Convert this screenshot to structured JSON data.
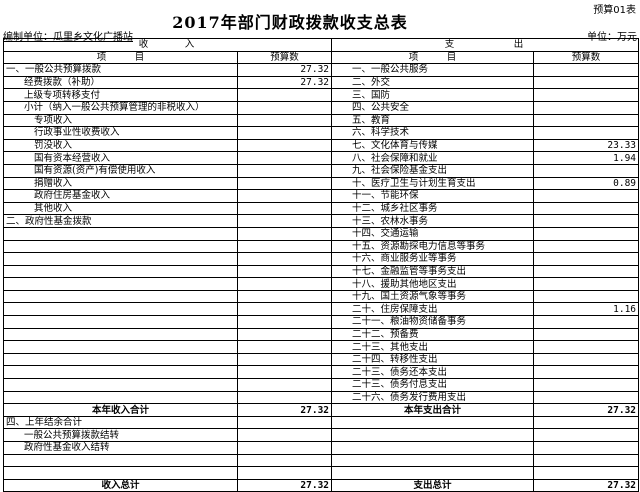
{
  "form_no": "预算01表",
  "title": "2017年部门财政拨款收支总表",
  "unit_left": "编制单位：瓜里乡文化广播站",
  "unit_right": "单位：万元",
  "headers": {
    "income": "收　　　入",
    "expense": "支　　　　　出",
    "item": "项　　　目",
    "budget": "预算数"
  },
  "income_rows": [
    {
      "label": "一、一般公共预算拨款",
      "value": "27.32",
      "level": 0
    },
    {
      "label": "经费拨款（补助）",
      "value": "27.32",
      "level": 1
    },
    {
      "label": "上级专项转移支付",
      "value": "",
      "level": 1
    },
    {
      "label": "小计（纳入一般公共预算管理的非税收入）",
      "value": "",
      "level": 1
    },
    {
      "label": "专项收入",
      "value": "",
      "level": 2
    },
    {
      "label": "行政事业性收费收入",
      "value": "",
      "level": 2
    },
    {
      "label": "罚没收入",
      "value": "",
      "level": 2
    },
    {
      "label": "国有资本经营收入",
      "value": "",
      "level": 2
    },
    {
      "label": "国有资源(资产)有偿使用收入",
      "value": "",
      "level": 2
    },
    {
      "label": "捐赠收入",
      "value": "",
      "level": 2
    },
    {
      "label": "政府住房基金收入",
      "value": "",
      "level": 2
    },
    {
      "label": "其他收入",
      "value": "",
      "level": 2
    },
    {
      "label": "二、政府性基金拨款",
      "value": "",
      "level": 0
    }
  ],
  "expense_rows": [
    {
      "label": "一、一般公共服务",
      "value": ""
    },
    {
      "label": "二、外交",
      "value": ""
    },
    {
      "label": "三、国防",
      "value": ""
    },
    {
      "label": "四、公共安全",
      "value": ""
    },
    {
      "label": "五、教育",
      "value": ""
    },
    {
      "label": "六、科学技术",
      "value": ""
    },
    {
      "label": "七、文化体育与传媒",
      "value": "23.33"
    },
    {
      "label": "八、社会保障和就业",
      "value": "1.94"
    },
    {
      "label": "九、社会保险基金支出",
      "value": ""
    },
    {
      "label": "十、医疗卫生与计划生育支出",
      "value": "0.89"
    },
    {
      "label": "十一、节能环保",
      "value": ""
    },
    {
      "label": "十二、城乡社区事务",
      "value": ""
    },
    {
      "label": "十三、农林水事务",
      "value": ""
    },
    {
      "label": "十四、交通运输",
      "value": ""
    },
    {
      "label": "十五、资源勘探电力信息等事务",
      "value": ""
    },
    {
      "label": "十六、商业服务业等事务",
      "value": ""
    },
    {
      "label": "十七、金融监管等事务支出",
      "value": ""
    },
    {
      "label": "十八、援助其他地区支出",
      "value": ""
    },
    {
      "label": "十九、国土资源气象等事务",
      "value": ""
    },
    {
      "label": "二十、住房保障支出",
      "value": "1.16"
    },
    {
      "label": "二十一、粮油物资储备事务",
      "value": ""
    },
    {
      "label": "二十二、预备费",
      "value": ""
    },
    {
      "label": "二十三、其他支出",
      "value": ""
    },
    {
      "label": "二十四、转移性支出",
      "value": ""
    },
    {
      "label": "二十三、债务还本支出",
      "value": ""
    },
    {
      "label": "二十三、债务付息支出",
      "value": ""
    },
    {
      "label": "二十六、债务发行费用支出",
      "value": ""
    }
  ],
  "year_totals": {
    "income_label": "本年收入合计",
    "income_value": "27.32",
    "expense_label": "本年支出合计",
    "expense_value": "27.32"
  },
  "carryover_rows": [
    {
      "label": "四、上年结余合计",
      "level": 0
    },
    {
      "label": "一般公共预算拨款结转",
      "level": 1
    },
    {
      "label": "政府性基金收入结转",
      "level": 1
    },
    {
      "label": "",
      "level": 0
    },
    {
      "label": "",
      "level": 0
    }
  ],
  "grand_totals": {
    "income_label": "收入总计",
    "income_value": "27.32",
    "expense_label": "支出总计",
    "expense_value": "27.32"
  }
}
